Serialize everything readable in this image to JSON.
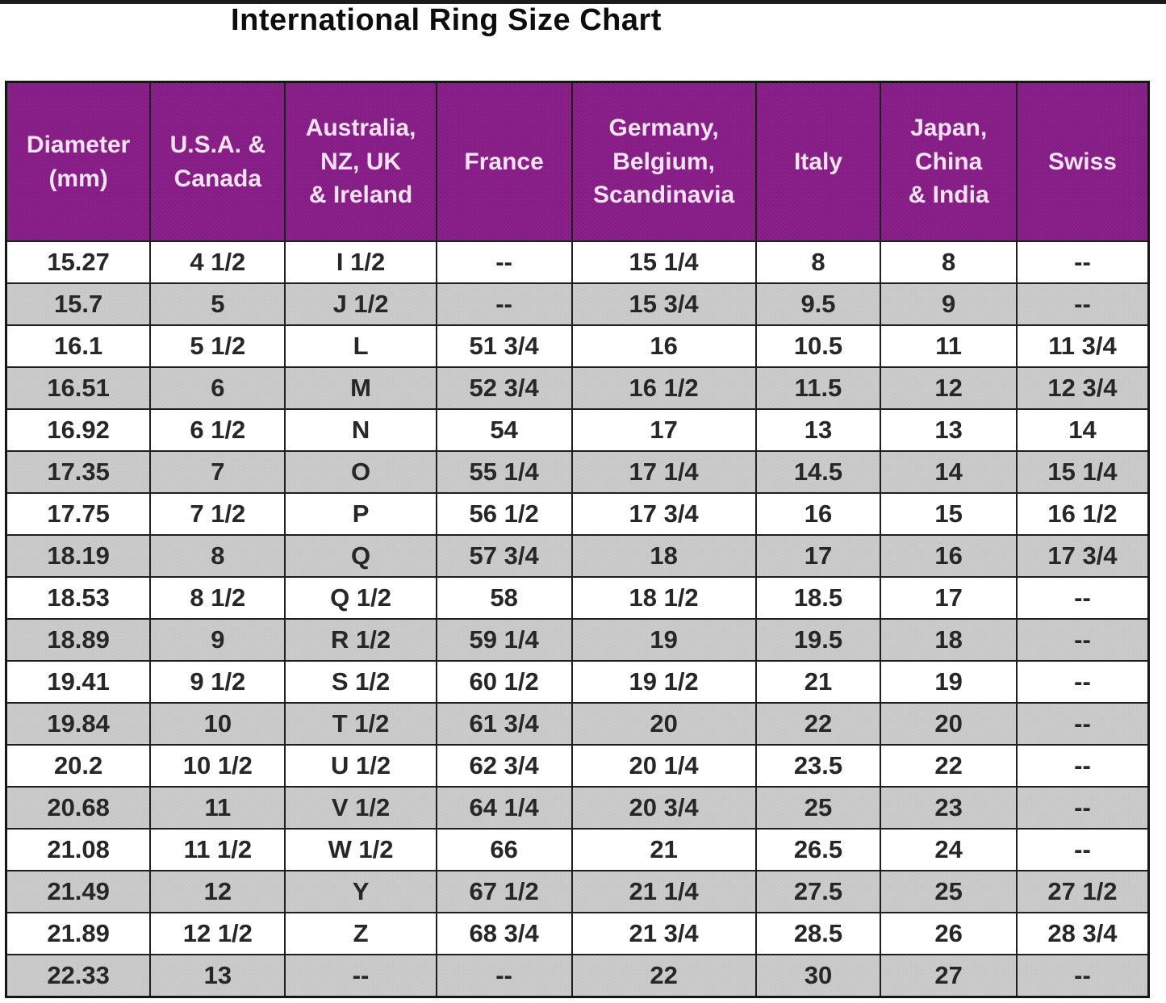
{
  "title": "International Ring Size Chart",
  "colors": {
    "header_background": "#8a2089",
    "header_text": "#f2e2f2",
    "row_alt_background": "#cbcbcb",
    "row_background": "#ffffff",
    "border": "#1f1f1f",
    "cell_text": "#272727",
    "title_text": "#0d0d0d"
  },
  "chart_data": {
    "type": "table",
    "title": "International Ring Size Chart",
    "columns": [
      "Diameter\n(mm)",
      "U.S.A. &\nCanada",
      "Australia,\nNZ, UK\n& Ireland",
      "France",
      "Germany,\nBelgium,\nScandinavia",
      "Italy",
      "Japan,\nChina\n& India",
      "Swiss"
    ],
    "rows": [
      [
        "15.27",
        "4 1/2",
        "I 1/2",
        "--",
        "15 1/4",
        "8",
        "8",
        "--"
      ],
      [
        "15.7",
        "5",
        "J 1/2",
        "--",
        "15 3/4",
        "9.5",
        "9",
        "--"
      ],
      [
        "16.1",
        "5 1/2",
        "L",
        "51 3/4",
        "16",
        "10.5",
        "11",
        "11 3/4"
      ],
      [
        "16.51",
        "6",
        "M",
        "52 3/4",
        "16 1/2",
        "11.5",
        "12",
        "12 3/4"
      ],
      [
        "16.92",
        "6 1/2",
        "N",
        "54",
        "17",
        "13",
        "13",
        "14"
      ],
      [
        "17.35",
        "7",
        "O",
        "55 1/4",
        "17 1/4",
        "14.5",
        "14",
        "15 1/4"
      ],
      [
        "17.75",
        "7 1/2",
        "P",
        "56 1/2",
        "17 3/4",
        "16",
        "15",
        "16 1/2"
      ],
      [
        "18.19",
        "8",
        "Q",
        "57 3/4",
        "18",
        "17",
        "16",
        "17 3/4"
      ],
      [
        "18.53",
        "8 1/2",
        "Q 1/2",
        "58",
        "18 1/2",
        "18.5",
        "17",
        "--"
      ],
      [
        "18.89",
        "9",
        "R 1/2",
        "59 1/4",
        "19",
        "19.5",
        "18",
        "--"
      ],
      [
        "19.41",
        "9 1/2",
        "S 1/2",
        "60 1/2",
        "19 1/2",
        "21",
        "19",
        "--"
      ],
      [
        "19.84",
        "10",
        "T 1/2",
        "61 3/4",
        "20",
        "22",
        "20",
        "--"
      ],
      [
        "20.2",
        "10 1/2",
        "U 1/2",
        "62 3/4",
        "20 1/4",
        "23.5",
        "22",
        "--"
      ],
      [
        "20.68",
        "11",
        "V 1/2",
        "64 1/4",
        "20 3/4",
        "25",
        "23",
        "--"
      ],
      [
        "21.08",
        "11 1/2",
        "W 1/2",
        "66",
        "21",
        "26.5",
        "24",
        "--"
      ],
      [
        "21.49",
        "12",
        "Y",
        "67 1/2",
        "21 1/4",
        "27.5",
        "25",
        "27 1/2"
      ],
      [
        "21.89",
        "12 1/2",
        "Z",
        "68 3/4",
        "21 3/4",
        "28.5",
        "26",
        "28 3/4"
      ],
      [
        "22.33",
        "13",
        "--",
        "--",
        "22",
        "30",
        "27",
        "--"
      ]
    ]
  }
}
